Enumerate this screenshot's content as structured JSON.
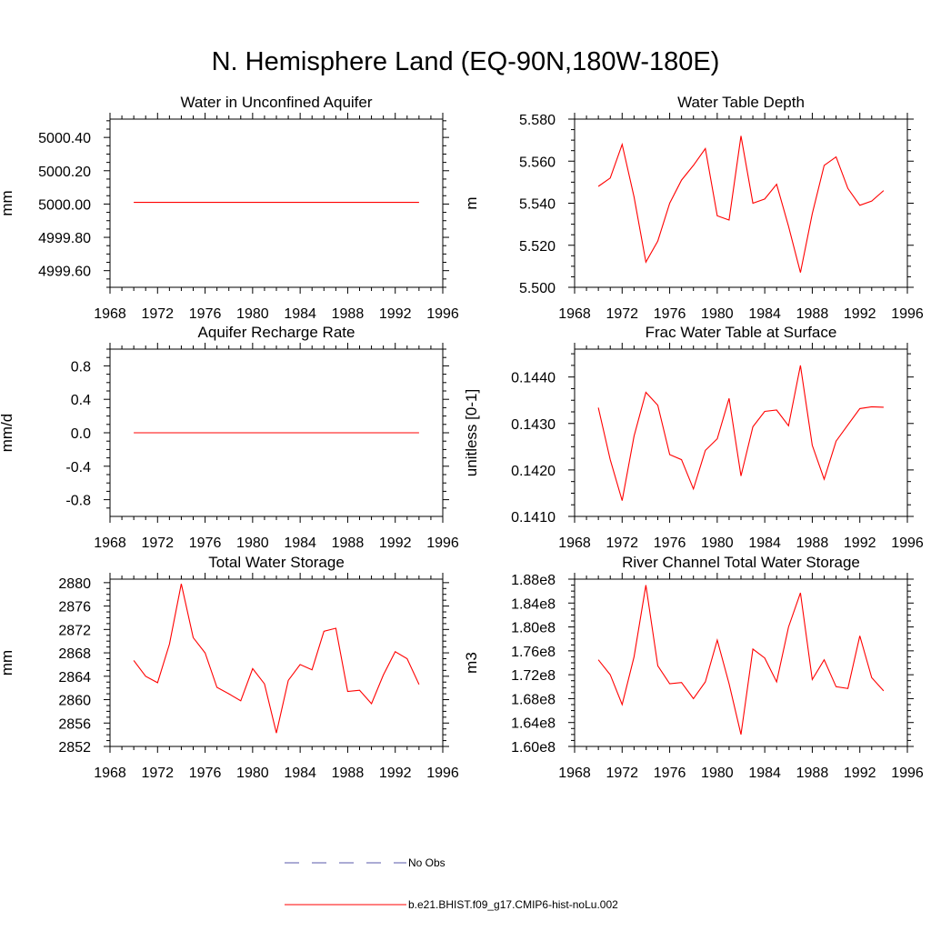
{
  "figure": {
    "title": "N. Hemisphere Land (EQ-90N,180W-180E)"
  },
  "legend": {
    "items": [
      {
        "label": "No Obs",
        "style": "dashed",
        "color": "#5a5aa8"
      },
      {
        "label": "b.e21.BHIST.f09_g17.CMIP6-hist-noLu.002",
        "style": "solid",
        "color": "#ff0000"
      }
    ]
  },
  "chart_data": [
    {
      "type": "line",
      "title": "Water in Unconfined Aquifer",
      "ylabel": "mm",
      "xlim": [
        1968,
        1996
      ],
      "ylim": [
        4999.5,
        5000.51
      ],
      "xticks": [
        1968,
        1972,
        1976,
        1980,
        1984,
        1988,
        1992,
        1996
      ],
      "yticks": [
        4999.6,
        4999.8,
        5000.0,
        5000.2,
        5000.4
      ],
      "ytick_labels": [
        "4999.60",
        "4999.80",
        "5000.00",
        "5000.20",
        "5000.40"
      ],
      "series": [
        {
          "color": "#ff0000",
          "x": [
            1970,
            1971,
            1972,
            1973,
            1974,
            1975,
            1976,
            1977,
            1978,
            1979,
            1980,
            1981,
            1982,
            1983,
            1984,
            1985,
            1986,
            1987,
            1988,
            1989,
            1990,
            1991,
            1992,
            1993,
            1994
          ],
          "values": [
            5000.01,
            5000.01,
            5000.01,
            5000.01,
            5000.01,
            5000.01,
            5000.01,
            5000.01,
            5000.01,
            5000.01,
            5000.01,
            5000.01,
            5000.01,
            5000.01,
            5000.01,
            5000.01,
            5000.01,
            5000.01,
            5000.01,
            5000.01,
            5000.01,
            5000.01,
            5000.01,
            5000.01,
            5000.01
          ]
        }
      ]
    },
    {
      "type": "line",
      "title": "Water Table Depth",
      "ylabel": "m",
      "xlim": [
        1968,
        1996
      ],
      "ylim": [
        5.5,
        5.58
      ],
      "xticks": [
        1968,
        1972,
        1976,
        1980,
        1984,
        1988,
        1992,
        1996
      ],
      "yticks": [
        5.5,
        5.52,
        5.54,
        5.56,
        5.58
      ],
      "ytick_labels": [
        "5.500",
        "5.520",
        "5.540",
        "5.560",
        "5.580"
      ],
      "series": [
        {
          "color": "#ff0000",
          "x": [
            1970,
            1971,
            1972,
            1973,
            1974,
            1975,
            1976,
            1977,
            1978,
            1979,
            1980,
            1981,
            1982,
            1983,
            1984,
            1985,
            1986,
            1987,
            1988,
            1989,
            1990,
            1991,
            1992,
            1993,
            1994
          ],
          "values": [
            5.548,
            5.552,
            5.568,
            5.543,
            5.512,
            5.522,
            5.54,
            5.551,
            5.558,
            5.566,
            5.534,
            5.532,
            5.572,
            5.54,
            5.542,
            5.549,
            5.529,
            5.507,
            5.535,
            5.558,
            5.562,
            5.547,
            5.539,
            5.541,
            5.546
          ]
        }
      ]
    },
    {
      "type": "line",
      "title": "Aquifer Recharge Rate",
      "ylabel": "mm/d",
      "xlim": [
        1968,
        1996
      ],
      "ylim": [
        -1.0,
        1.0
      ],
      "xticks": [
        1968,
        1972,
        1976,
        1980,
        1984,
        1988,
        1992,
        1996
      ],
      "yticks": [
        -0.8,
        -0.4,
        0.0,
        0.4,
        0.8
      ],
      "ytick_labels": [
        "-0.8",
        "-0.4",
        "0.0",
        "0.4",
        "0.8"
      ],
      "series": [
        {
          "color": "#ff0000",
          "x": [
            1970,
            1971,
            1972,
            1973,
            1974,
            1975,
            1976,
            1977,
            1978,
            1979,
            1980,
            1981,
            1982,
            1983,
            1984,
            1985,
            1986,
            1987,
            1988,
            1989,
            1990,
            1991,
            1992,
            1993,
            1994
          ],
          "values": [
            0,
            0,
            0,
            0,
            0,
            0,
            0,
            0,
            0,
            0,
            0,
            0,
            0,
            0,
            0,
            0,
            0,
            0,
            0,
            0,
            0,
            0,
            0,
            0,
            0
          ]
        }
      ]
    },
    {
      "type": "line",
      "title": "Frac Water Table at Surface",
      "ylabel": "unitless [0-1]",
      "xlim": [
        1968,
        1996
      ],
      "ylim": [
        0.141,
        0.1446
      ],
      "xticks": [
        1968,
        1972,
        1976,
        1980,
        1984,
        1988,
        1992,
        1996
      ],
      "yticks": [
        0.141,
        0.142,
        0.143,
        0.144
      ],
      "ytick_labels": [
        "0.1410",
        "0.1420",
        "0.1430",
        "0.1440"
      ],
      "series": [
        {
          "color": "#ff0000",
          "x": [
            1970,
            1971,
            1972,
            1973,
            1974,
            1975,
            1976,
            1977,
            1978,
            1979,
            1980,
            1981,
            1982,
            1983,
            1984,
            1985,
            1986,
            1987,
            1988,
            1989,
            1990,
            1991,
            1992,
            1993,
            1994
          ],
          "values": [
            0.14334,
            0.14222,
            0.14134,
            0.14273,
            0.14367,
            0.14339,
            0.14233,
            0.14222,
            0.14159,
            0.14242,
            0.14267,
            0.14354,
            0.14187,
            0.14293,
            0.14326,
            0.14329,
            0.14295,
            0.14425,
            0.14253,
            0.1418,
            0.14262,
            0.14297,
            0.14332,
            0.14336,
            0.14335
          ]
        }
      ]
    },
    {
      "type": "line",
      "title": "Total Water Storage",
      "ylabel": "mm",
      "xlim": [
        1968,
        1996
      ],
      "ylim": [
        2852,
        2880.6
      ],
      "xticks": [
        1968,
        1972,
        1976,
        1980,
        1984,
        1988,
        1992,
        1996
      ],
      "yticks": [
        2852,
        2856,
        2860,
        2864,
        2868,
        2872,
        2876,
        2880
      ],
      "ytick_labels": [
        "2852",
        "2856",
        "2860",
        "2864",
        "2868",
        "2872",
        "2876",
        "2880"
      ],
      "series": [
        {
          "color": "#ff0000",
          "x": [
            1970,
            1971,
            1972,
            1973,
            1974,
            1975,
            1976,
            1977,
            1978,
            1979,
            1980,
            1981,
            1982,
            1983,
            1984,
            1985,
            1986,
            1987,
            1988,
            1989,
            1990,
            1991,
            1992,
            1993,
            1994
          ],
          "values": [
            2866.7,
            2864.0,
            2862.9,
            2869.5,
            2879.8,
            2870.6,
            2868.0,
            2862.1,
            2861.0,
            2859.8,
            2865.3,
            2862.7,
            2854.3,
            2863.3,
            2866.0,
            2865.1,
            2871.7,
            2872.2,
            2861.4,
            2861.6,
            2859.3,
            2864.2,
            2868.2,
            2867.0,
            2862.6
          ]
        }
      ]
    },
    {
      "type": "line",
      "title": "River Channel Total Water Storage",
      "ylabel": "m3",
      "xlim": [
        1968,
        1996
      ],
      "ylim": [
        160000000.0,
        188000000.0
      ],
      "xticks": [
        1968,
        1972,
        1976,
        1980,
        1984,
        1988,
        1992,
        1996
      ],
      "yticks": [
        160000000.0,
        164000000.0,
        168000000.0,
        172000000.0,
        176000000.0,
        180000000.0,
        184000000.0,
        188000000.0
      ],
      "ytick_labels": [
        "1.60e8",
        "1.64e8",
        "1.68e8",
        "1.72e8",
        "1.76e8",
        "1.80e8",
        "1.84e8",
        "1.88e8"
      ],
      "series": [
        {
          "color": "#ff0000",
          "x": [
            1970,
            1971,
            1972,
            1973,
            1974,
            1975,
            1976,
            1977,
            1978,
            1979,
            1980,
            1981,
            1982,
            1983,
            1984,
            1985,
            1986,
            1987,
            1988,
            1989,
            1990,
            1991,
            1992,
            1993,
            1994
          ],
          "values": [
            174500000.0,
            172000000.0,
            167000000.0,
            175000000.0,
            187000000.0,
            173500000.0,
            170500000.0,
            170700000.0,
            168000000.0,
            170800000.0,
            177800000.0,
            170500000.0,
            162000000.0,
            176300000.0,
            174800000.0,
            170800000.0,
            180000000.0,
            185700000.0,
            171200000.0,
            174500000.0,
            170000000.0,
            169700000.0,
            178500000.0,
            171500000.0,
            169300000.0
          ]
        }
      ]
    }
  ]
}
